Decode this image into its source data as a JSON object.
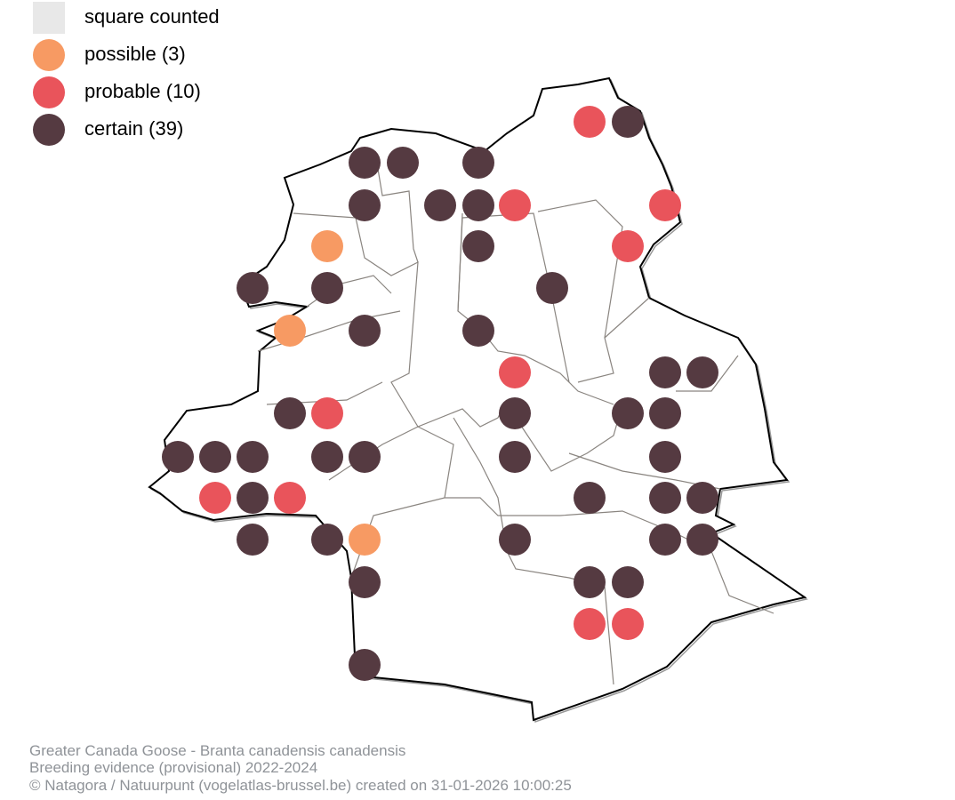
{
  "legend": [
    {
      "label": "square counted"
    },
    {
      "label": "possible (3)"
    },
    {
      "label": "probable (10)"
    },
    {
      "label": "certain (39)"
    }
  ],
  "footer": {
    "lines": [
      "Greater Canada Goose - Branta canadensis canadensis",
      "Breeding evidence (provisional) 2022-2024",
      "© Natagora / Natuurpunt (vogelatlas-brussel.be) created on 31-01-2026 10:00:25"
    ]
  }
}
